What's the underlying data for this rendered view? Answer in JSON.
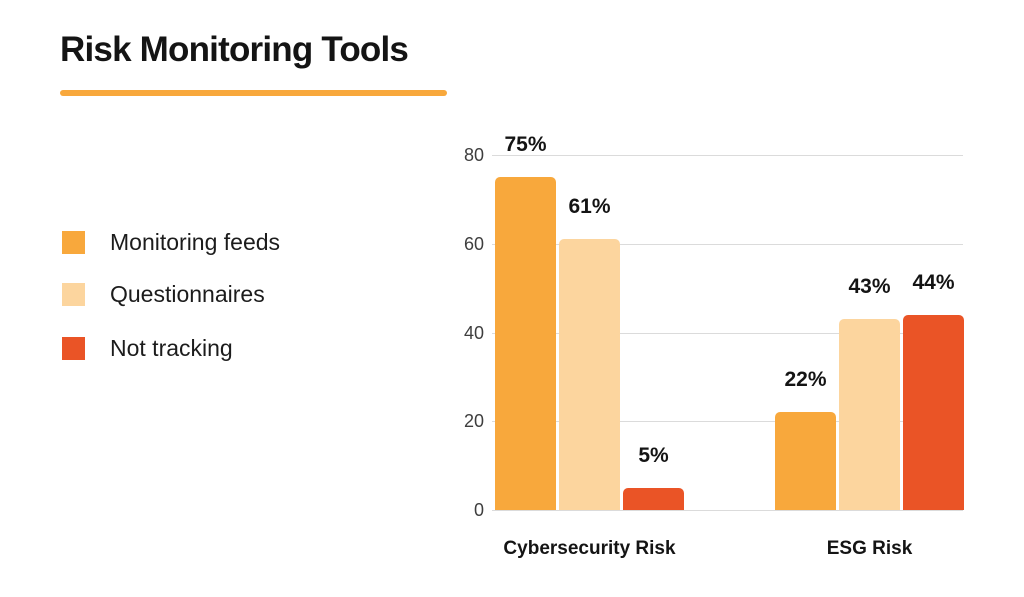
{
  "title": "Risk Monitoring Tools",
  "accent_color": "#F8A83C",
  "legend": {
    "items": [
      {
        "label": "Monitoring feeds",
        "color": "#F8A83C"
      },
      {
        "label": "Questionnaires",
        "color": "#FCD59E"
      },
      {
        "label": "Not tracking",
        "color": "#EA5426"
      }
    ]
  },
  "chart_data": {
    "type": "bar",
    "title": "Risk Monitoring Tools",
    "categories": [
      "Cybersecurity Risk",
      "ESG Risk"
    ],
    "series": [
      {
        "name": "Monitoring feeds",
        "color": "#F8A83C",
        "values": [
          75,
          22
        ],
        "labels": [
          "75%",
          "22%"
        ]
      },
      {
        "name": "Questionnaires",
        "color": "#FCD59E",
        "values": [
          61,
          43
        ],
        "labels": [
          "61%",
          "43%"
        ]
      },
      {
        "name": "Not tracking",
        "color": "#EA5426",
        "values": [
          5,
          44
        ],
        "labels": [
          "5%",
          "44%"
        ]
      }
    ],
    "xlabel": "",
    "ylabel": "",
    "ylim": [
      0,
      80
    ],
    "y_ticks": [
      0,
      20,
      40,
      60,
      80
    ],
    "grid": "horizontal",
    "gridline_color": "#DBDBDB",
    "legend_position": "left"
  }
}
